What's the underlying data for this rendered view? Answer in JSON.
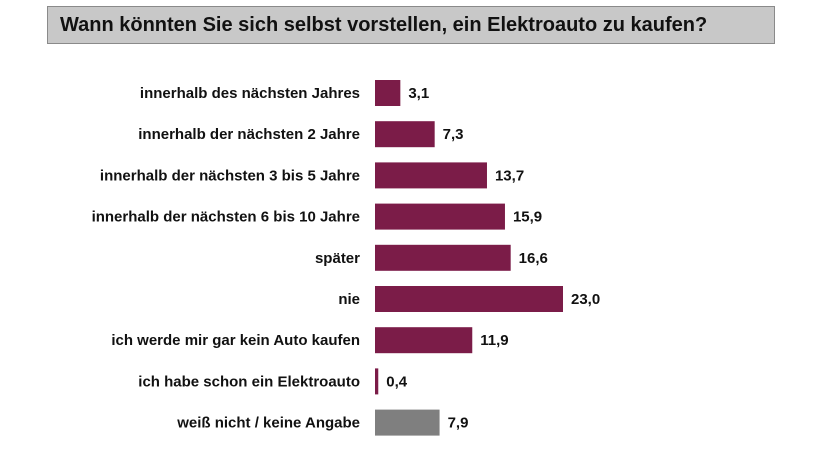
{
  "chart_data": {
    "type": "bar",
    "orientation": "horizontal",
    "title": "Wann könnten Sie sich selbst vorstellen, ein Elektroauto zu kaufen?",
    "categories": [
      "innerhalb des nächsten Jahres",
      "innerhalb der nächsten 2 Jahre",
      "innerhalb der nächsten 3 bis 5 Jahre",
      "innerhalb der nächsten 6 bis 10 Jahre",
      "später",
      "nie",
      "ich werde mir gar kein Auto kaufen",
      "ich habe schon ein Elektroauto",
      "weiß nicht / keine Angabe"
    ],
    "values": [
      3.1,
      7.3,
      13.7,
      15.9,
      16.6,
      23.0,
      11.9,
      0.4,
      7.9
    ],
    "value_labels": [
      "3,1",
      "7,3",
      "13,7",
      "15,9",
      "16,6",
      "23,0",
      "11,9",
      "0,4",
      "7,9"
    ],
    "colors": [
      "#7b1c48",
      "#7b1c48",
      "#7b1c48",
      "#7b1c48",
      "#7b1c48",
      "#7b1c48",
      "#7b1c48",
      "#7b1c48",
      "#7f7f7f"
    ],
    "xlim": [
      0,
      23.0
    ],
    "grid": false,
    "axes_visible": false,
    "legend": "none"
  }
}
